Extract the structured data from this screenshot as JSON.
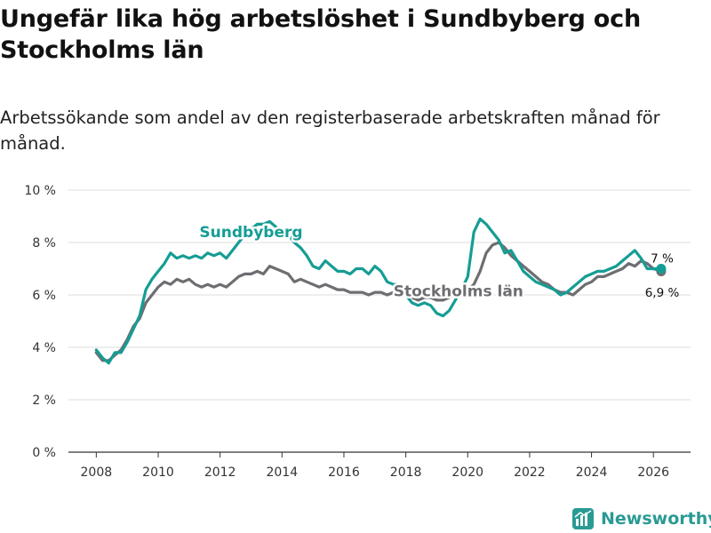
{
  "title": "Ungefär lika hög arbetslöshet i Sundbyberg och Stockholms län",
  "subtitle": "Arbetssökande som andel av den registerbaserade arbetskraften månad för månad.",
  "brand": "Newsworthy",
  "colors": {
    "sundbyberg": "#159d94",
    "stockholm": "#6e6e72",
    "grid": "#dddddd",
    "brand": "#2a9a94"
  },
  "chart_data": {
    "type": "line",
    "title": "Ungefär lika hög arbetslöshet i Sundbyberg och Stockholms län",
    "xlabel": "",
    "ylabel": "",
    "xlim": [
      2007.1,
      2027.2
    ],
    "ylim": [
      0,
      10
    ],
    "grid": true,
    "y_ticks": [
      0,
      2,
      4,
      6,
      8,
      10
    ],
    "y_tick_labels": [
      "0 %",
      "2 %",
      "4 %",
      "6 %",
      "8 %",
      "10 %"
    ],
    "x_ticks": [
      2008,
      2010,
      2012,
      2014,
      2016,
      2018,
      2020,
      2022,
      2024,
      2026
    ],
    "x_tick_labels": [
      "2008",
      "2010",
      "2012",
      "2014",
      "2016",
      "2018",
      "2020",
      "2022",
      "2024",
      "2026"
    ],
    "series": [
      {
        "name": "Stockholms län",
        "label": "Stockholms län",
        "end_label": "6,9 %",
        "x": [
          2008.0,
          2008.2,
          2008.4,
          2008.6,
          2008.8,
          2009.0,
          2009.2,
          2009.4,
          2009.6,
          2009.8,
          2010.0,
          2010.2,
          2010.4,
          2010.6,
          2010.8,
          2011.0,
          2011.2,
          2011.4,
          2011.6,
          2011.8,
          2012.0,
          2012.2,
          2012.4,
          2012.6,
          2012.8,
          2013.0,
          2013.2,
          2013.4,
          2013.6,
          2013.8,
          2014.0,
          2014.2,
          2014.4,
          2014.6,
          2014.8,
          2015.0,
          2015.2,
          2015.4,
          2015.6,
          2015.8,
          2016.0,
          2016.2,
          2016.4,
          2016.6,
          2016.8,
          2017.0,
          2017.2,
          2017.4,
          2017.6,
          2017.8,
          2018.0,
          2018.2,
          2018.4,
          2018.6,
          2018.8,
          2019.0,
          2019.2,
          2019.4,
          2019.6,
          2019.8,
          2020.0,
          2020.2,
          2020.4,
          2020.6,
          2020.8,
          2021.0,
          2021.2,
          2021.4,
          2021.6,
          2021.8,
          2022.0,
          2022.2,
          2022.4,
          2022.6,
          2022.8,
          2023.0,
          2023.2,
          2023.4,
          2023.6,
          2023.8,
          2024.0,
          2024.2,
          2024.4,
          2024.6,
          2024.8,
          2025.0,
          2025.2,
          2025.4,
          2025.6,
          2025.8,
          2026.0,
          2026.25
        ],
        "values": [
          3.8,
          3.5,
          3.5,
          3.7,
          3.9,
          4.3,
          4.8,
          5.1,
          5.7,
          6.0,
          6.3,
          6.5,
          6.4,
          6.6,
          6.5,
          6.6,
          6.4,
          6.3,
          6.4,
          6.3,
          6.4,
          6.3,
          6.5,
          6.7,
          6.8,
          6.8,
          6.9,
          6.8,
          7.1,
          7.0,
          6.9,
          6.8,
          6.5,
          6.6,
          6.5,
          6.4,
          6.3,
          6.4,
          6.3,
          6.2,
          6.2,
          6.1,
          6.1,
          6.1,
          6.0,
          6.1,
          6.1,
          6.0,
          6.1,
          6.1,
          6.0,
          5.9,
          5.8,
          5.9,
          5.9,
          5.8,
          5.8,
          5.9,
          6.0,
          6.1,
          6.2,
          6.4,
          6.9,
          7.6,
          7.9,
          8.0,
          7.8,
          7.5,
          7.3,
          7.1,
          6.9,
          6.7,
          6.5,
          6.4,
          6.2,
          6.1,
          6.1,
          6.0,
          6.2,
          6.4,
          6.5,
          6.7,
          6.7,
          6.8,
          6.9,
          7.0,
          7.2,
          7.1,
          7.3,
          7.2,
          7.0,
          6.9
        ]
      },
      {
        "name": "Sundbyberg",
        "label": "Sundbyberg",
        "end_label": "7 %",
        "x": [
          2008.0,
          2008.2,
          2008.4,
          2008.6,
          2008.8,
          2009.0,
          2009.2,
          2009.4,
          2009.6,
          2009.8,
          2010.0,
          2010.2,
          2010.4,
          2010.6,
          2010.8,
          2011.0,
          2011.2,
          2011.4,
          2011.6,
          2011.8,
          2012.0,
          2012.2,
          2012.4,
          2012.6,
          2012.8,
          2013.0,
          2013.2,
          2013.4,
          2013.6,
          2013.8,
          2014.0,
          2014.2,
          2014.4,
          2014.6,
          2014.8,
          2015.0,
          2015.2,
          2015.4,
          2015.6,
          2015.8,
          2016.0,
          2016.2,
          2016.4,
          2016.6,
          2016.8,
          2017.0,
          2017.2,
          2017.4,
          2017.6,
          2017.8,
          2018.0,
          2018.2,
          2018.4,
          2018.6,
          2018.8,
          2019.0,
          2019.2,
          2019.4,
          2019.6,
          2019.8,
          2020.0,
          2020.2,
          2020.4,
          2020.6,
          2020.8,
          2021.0,
          2021.2,
          2021.4,
          2021.6,
          2021.8,
          2022.0,
          2022.2,
          2022.4,
          2022.6,
          2022.8,
          2023.0,
          2023.2,
          2023.4,
          2023.6,
          2023.8,
          2024.0,
          2024.2,
          2024.4,
          2024.6,
          2024.8,
          2025.0,
          2025.2,
          2025.4,
          2025.6,
          2025.8,
          2026.0,
          2026.25
        ],
        "values": [
          3.9,
          3.6,
          3.4,
          3.8,
          3.8,
          4.2,
          4.7,
          5.2,
          6.2,
          6.6,
          6.9,
          7.2,
          7.6,
          7.4,
          7.5,
          7.4,
          7.5,
          7.4,
          7.6,
          7.5,
          7.6,
          7.4,
          7.7,
          8.0,
          8.3,
          8.5,
          8.7,
          8.7,
          8.8,
          8.6,
          8.4,
          8.3,
          8.0,
          7.8,
          7.5,
          7.1,
          7.0,
          7.3,
          7.1,
          6.9,
          6.9,
          6.8,
          7.0,
          7.0,
          6.8,
          7.1,
          6.9,
          6.5,
          6.4,
          6.4,
          6.0,
          5.7,
          5.6,
          5.7,
          5.6,
          5.3,
          5.2,
          5.4,
          5.8,
          6.2,
          6.7,
          8.4,
          8.9,
          8.7,
          8.4,
          8.1,
          7.6,
          7.7,
          7.3,
          6.9,
          6.7,
          6.5,
          6.4,
          6.3,
          6.2,
          6.0,
          6.1,
          6.3,
          6.5,
          6.7,
          6.8,
          6.9,
          6.9,
          7.0,
          7.1,
          7.3,
          7.5,
          7.7,
          7.4,
          7.0,
          7.0,
          7.0
        ]
      }
    ]
  }
}
